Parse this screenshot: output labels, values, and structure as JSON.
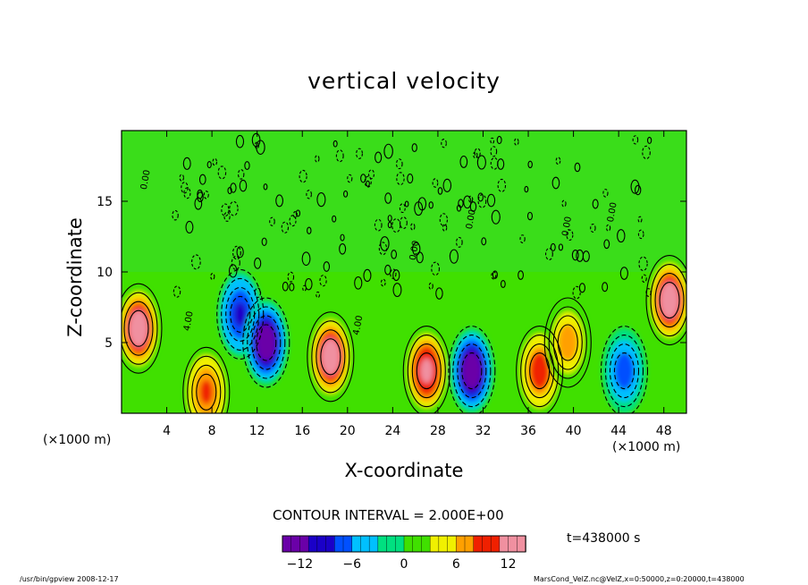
{
  "chart_data": {
    "type": "heatmap",
    "title": "vertical velocity",
    "xlabel": "X-coordinate",
    "ylabel": "Z-coordinate",
    "x_unit": "(×1000 m)",
    "y_unit": "(×1000 m)",
    "x_range": [
      0,
      50
    ],
    "y_range": [
      0,
      20
    ],
    "x_ticks": [
      4,
      8,
      12,
      16,
      20,
      24,
      28,
      32,
      36,
      40,
      44,
      48
    ],
    "y_ticks": [
      5,
      10,
      15
    ],
    "contour_interval_label": "CONTOUR INTERVAL = 2.000E+00",
    "contour_labels": [
      "0.00",
      "4.00",
      "4.00",
      "0.00",
      "0.00",
      "0.00",
      "0.00"
    ],
    "colorbar": {
      "range": [
        -14,
        14
      ],
      "ticks": [
        -12,
        -6,
        0,
        6,
        12
      ],
      "colors": [
        "#6a00a8",
        "#1a00c8",
        "#0050ff",
        "#00c0ff",
        "#00e080",
        "#40e000",
        "#f0f000",
        "#ffa000",
        "#f02000",
        "#f090a0"
      ]
    },
    "features": [
      {
        "x": 1.5,
        "z": 6,
        "value": 14,
        "kind": "updraft"
      },
      {
        "x": 7.5,
        "z": 1.5,
        "value": 10,
        "kind": "updraft"
      },
      {
        "x": 10.5,
        "z": 7,
        "value": -10,
        "kind": "downdraft"
      },
      {
        "x": 12.8,
        "z": 5,
        "value": -14,
        "kind": "downdraft"
      },
      {
        "x": 18.5,
        "z": 4,
        "value": 14,
        "kind": "updraft"
      },
      {
        "x": 27,
        "z": 3,
        "value": 13,
        "kind": "updraft"
      },
      {
        "x": 31,
        "z": 3,
        "value": -14,
        "kind": "downdraft"
      },
      {
        "x": 37,
        "z": 3,
        "value": 11,
        "kind": "updraft"
      },
      {
        "x": 39.5,
        "z": 5,
        "value": 8,
        "kind": "updraft"
      },
      {
        "x": 44.5,
        "z": 3,
        "value": -8,
        "kind": "downdraft"
      },
      {
        "x": 48.5,
        "z": 8,
        "value": 14,
        "kind": "updraft"
      }
    ]
  },
  "time_label": "t=438000 s",
  "footer_left": "/usr/bin/gpview   2008-12-17",
  "footer_right": "MarsCond_VelZ.nc@VelZ,x=0:50000,z=0:20000,t=438000"
}
